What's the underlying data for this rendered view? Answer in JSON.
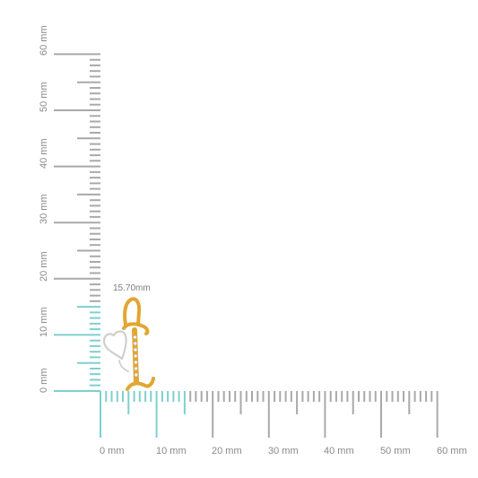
{
  "ruler": {
    "vertical_labels": [
      "0 mm",
      "10 mm",
      "20 mm",
      "30 mm",
      "40 mm",
      "50 mm",
      "60 mm"
    ],
    "horizontal_labels": [
      "0 mm",
      "10 mm",
      "20 mm",
      "30 mm",
      "40 mm",
      "50 mm",
      "60 mm"
    ],
    "highlight_max_mm": 15.7,
    "colors": {
      "ruler": "#a9a9a9",
      "highlight": "#7fcfcf"
    }
  },
  "measurement": {
    "width_label": "15.70mm"
  },
  "product": {
    "name": "letter-i-heart-pendant-icon",
    "colors": {
      "gold": "#e2a632",
      "gold_dark": "#c78a1e",
      "silver": "#d8d8d8",
      "stone": "#ffffff"
    }
  }
}
